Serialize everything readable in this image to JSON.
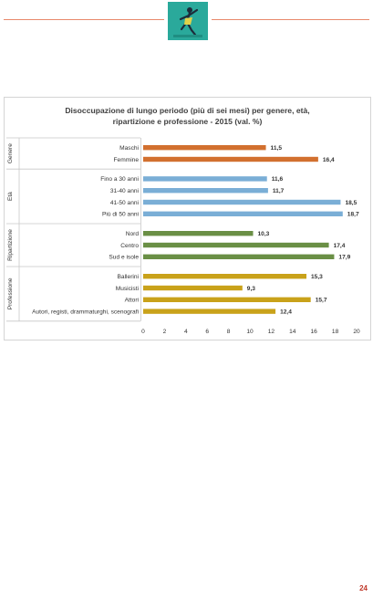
{
  "page": {
    "number": "24"
  },
  "colors": {
    "rule": "#e8896b",
    "logo_bg": "#2aa99b"
  },
  "chart_data": {
    "type": "bar",
    "orientation": "horizontal",
    "title_line1": "Disoccupazione di lungo periodo (più di sei mesi) per genere, età,",
    "title_line2": "ripartizione e professione - 2015 (val. %)",
    "xlim": [
      0,
      20
    ],
    "xticks": [
      "0",
      "2",
      "4",
      "6",
      "8",
      "10",
      "12",
      "14",
      "16",
      "18",
      "20"
    ],
    "grid": false,
    "groups": [
      {
        "name": "Genere",
        "color": "#d2702f",
        "bars": [
          {
            "label": "Maschi",
            "value": 11.5,
            "value_label": "11,5"
          },
          {
            "label": "Femmine",
            "value": 16.4,
            "value_label": "16,4"
          }
        ]
      },
      {
        "name": "Età",
        "color": "#7aaed6",
        "bars": [
          {
            "label": "Fino a 30 anni",
            "value": 11.6,
            "value_label": "11,6"
          },
          {
            "label": "31-40 anni",
            "value": 11.7,
            "value_label": "11,7"
          },
          {
            "label": "41-50 anni",
            "value": 18.5,
            "value_label": "18,5"
          },
          {
            "label": "Più di 50 anni",
            "value": 18.7,
            "value_label": "18,7"
          }
        ]
      },
      {
        "name": "Ripartizione",
        "color": "#6a8f45",
        "bars": [
          {
            "label": "Nord",
            "value": 10.3,
            "value_label": "10,3"
          },
          {
            "label": "Centro",
            "value": 17.4,
            "value_label": "17,4"
          },
          {
            "label": "Sud e isole",
            "value": 17.9,
            "value_label": "17,9"
          }
        ]
      },
      {
        "name": "Professione",
        "color": "#c9a21a",
        "bars": [
          {
            "label": "Ballerini",
            "value": 15.3,
            "value_label": "15,3"
          },
          {
            "label": "Musicisti",
            "value": 9.3,
            "value_label": "9,3"
          },
          {
            "label": "Attori",
            "value": 15.7,
            "value_label": "15,7"
          },
          {
            "label": "Autori, registi, drammaturghi, scenografi",
            "value": 12.4,
            "value_label": "12,4"
          }
        ]
      }
    ]
  }
}
